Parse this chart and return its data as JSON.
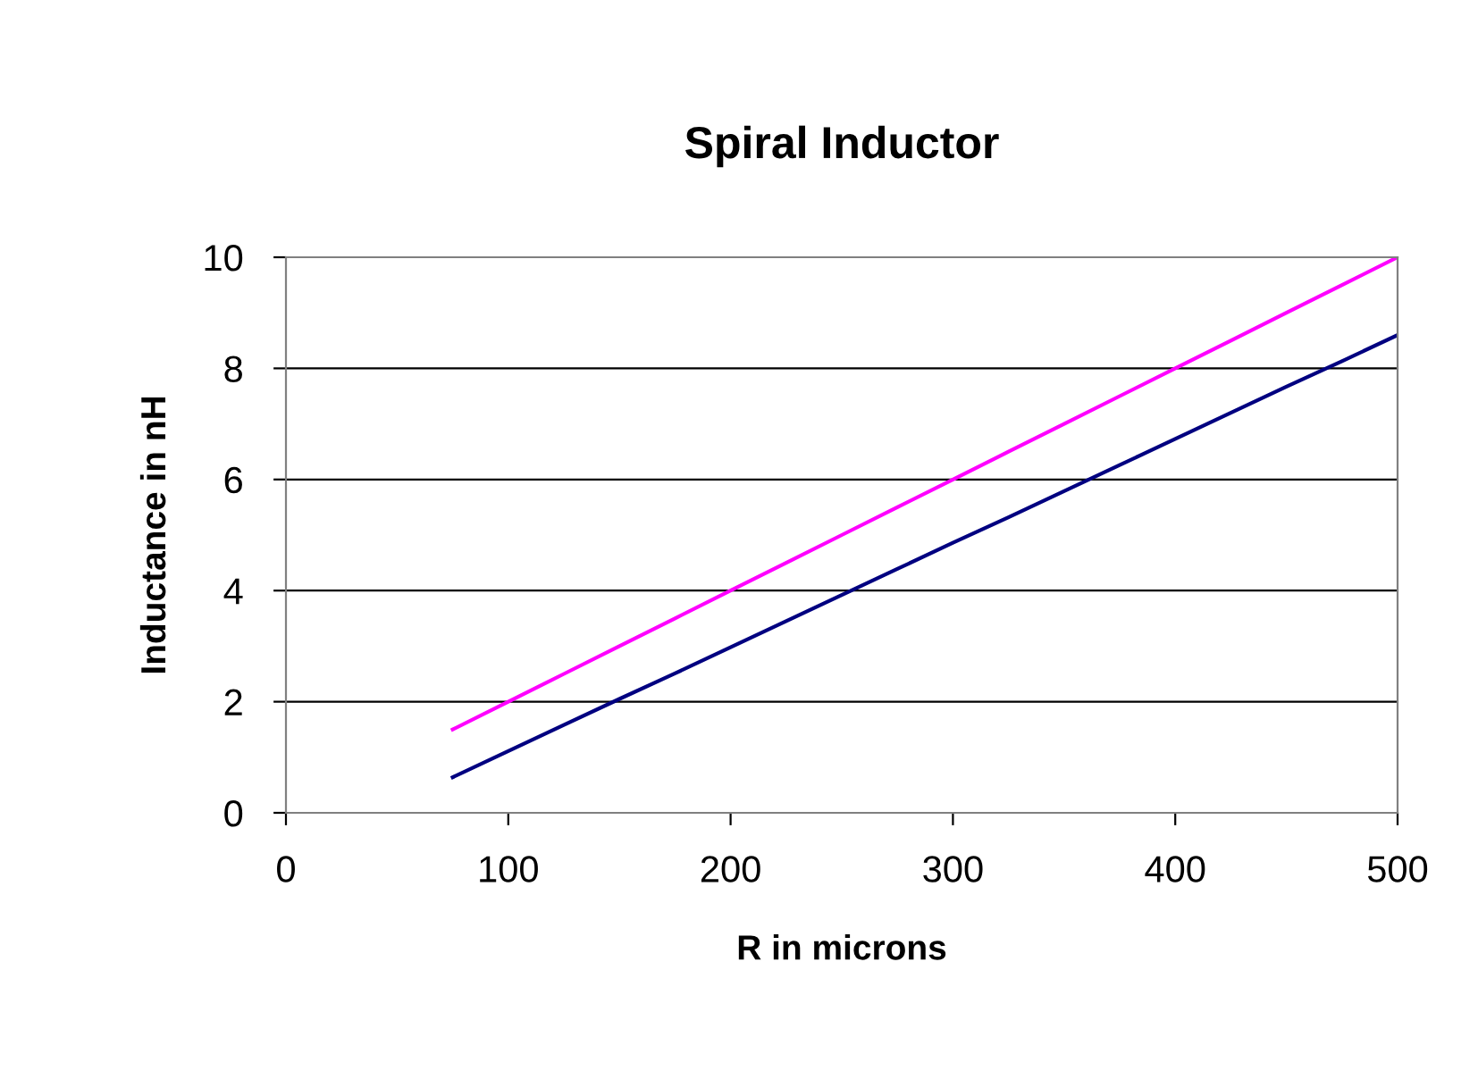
{
  "chart_data": {
    "type": "line",
    "title": "Spiral Inductor",
    "xlabel": "R in microns",
    "ylabel": "Inductance in nH",
    "x": [
      75,
      100,
      125,
      150,
      175,
      200,
      225,
      250,
      275,
      300,
      325,
      350,
      375,
      400,
      425,
      450,
      475,
      500
    ],
    "series": [
      {
        "color": "#ff00ff",
        "values": [
          1.5,
          2.0,
          2.5,
          3.0,
          3.5,
          4.0,
          4.5,
          5.0,
          5.5,
          6.0,
          6.5,
          7.0,
          7.5,
          8.0,
          8.5,
          9.0,
          9.5,
          10.0
        ]
      },
      {
        "color": "#000080",
        "values": [
          0.64,
          1.11,
          1.58,
          2.05,
          2.51,
          2.98,
          3.45,
          3.92,
          4.39,
          4.86,
          5.32,
          5.79,
          6.26,
          6.73,
          7.2,
          7.67,
          8.13,
          8.6
        ]
      }
    ],
    "xlim": [
      0,
      500
    ],
    "xticks": [
      0,
      100,
      200,
      300,
      400,
      500
    ],
    "ylim": [
      0,
      10
    ],
    "yticks": [
      0,
      2,
      4,
      6,
      8,
      10
    ],
    "grid": "y"
  }
}
